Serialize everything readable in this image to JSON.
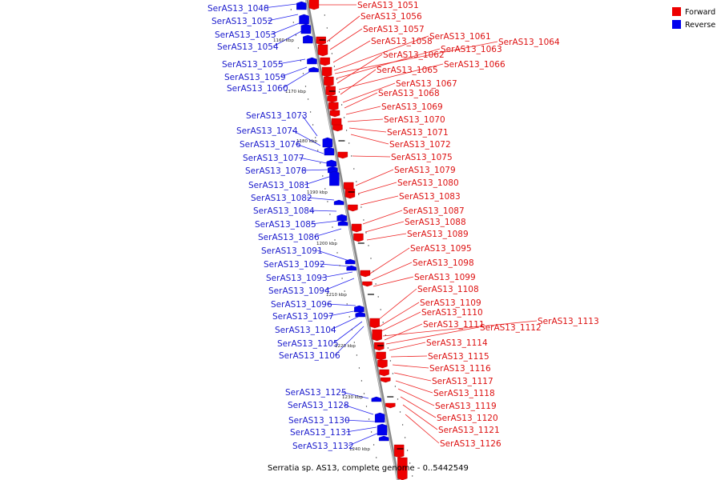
{
  "caption": "Serratia sp. AS13, complete genome - 0..5442549",
  "legend": {
    "forward": {
      "label": "Forward",
      "color": "#ee0000"
    },
    "reverse": {
      "label": "Reverse",
      "color": "#0000ee"
    }
  },
  "ticks": [
    "1160 kbp",
    "1170 kbp",
    "1180 kbp",
    "1190 kbp",
    "1200 kbp",
    "1210 kbp",
    "1220 kbp",
    "1230 kbp",
    "1240 kbp"
  ],
  "forward_genes": [
    "SerAS13_1051",
    "SerAS13_1056",
    "SerAS13_1057",
    "SerAS13_1058",
    "SerAS13_1061",
    "SerAS13_1064",
    "SerAS13_1063",
    "SerAS13_1062",
    "SerAS13_1066",
    "SerAS13_1065",
    "SerAS13_1067",
    "SerAS13_1068",
    "SerAS13_1069",
    "SerAS13_1070",
    "SerAS13_1071",
    "SerAS13_1072",
    "SerAS13_1075",
    "SerAS13_1079",
    "SerAS13_1080",
    "SerAS13_1083",
    "SerAS13_1087",
    "SerAS13_1088",
    "SerAS13_1089",
    "SerAS13_1095",
    "SerAS13_1098",
    "SerAS13_1099",
    "SerAS13_1108",
    "SerAS13_1109",
    "SerAS13_1110",
    "SerAS13_1113",
    "SerAS13_1111",
    "SerAS13_1112",
    "SerAS13_1114",
    "SerAS13_1115",
    "SerAS13_1116",
    "SerAS13_1117",
    "SerAS13_1118",
    "SerAS13_1119",
    "SerAS13_1120",
    "SerAS13_1121",
    "SerAS13_1126"
  ],
  "reverse_genes": [
    "SerAS13_1048",
    "SerAS13_1052",
    "SerAS13_1053",
    "SerAS13_1054",
    "SerAS13_1055",
    "SerAS13_1059",
    "SerAS13_1060",
    "SerAS13_1073",
    "SerAS13_1074",
    "SerAS13_1076",
    "SerAS13_1077",
    "SerAS13_1078",
    "SerAS13_1081",
    "SerAS13_1082",
    "SerAS13_1084",
    "SerAS13_1085",
    "SerAS13_1086",
    "SerAS13_1091",
    "SerAS13_1092",
    "SerAS13_1093",
    "SerAS13_1094",
    "SerAS13_1096",
    "SerAS13_1097",
    "SerAS13_1104",
    "SerAS13_1105",
    "SerAS13_1106",
    "SerAS13_1125",
    "SerAS13_1128",
    "SerAS13_1130",
    "SerAS13_1131",
    "SerAS13_1132"
  ]
}
